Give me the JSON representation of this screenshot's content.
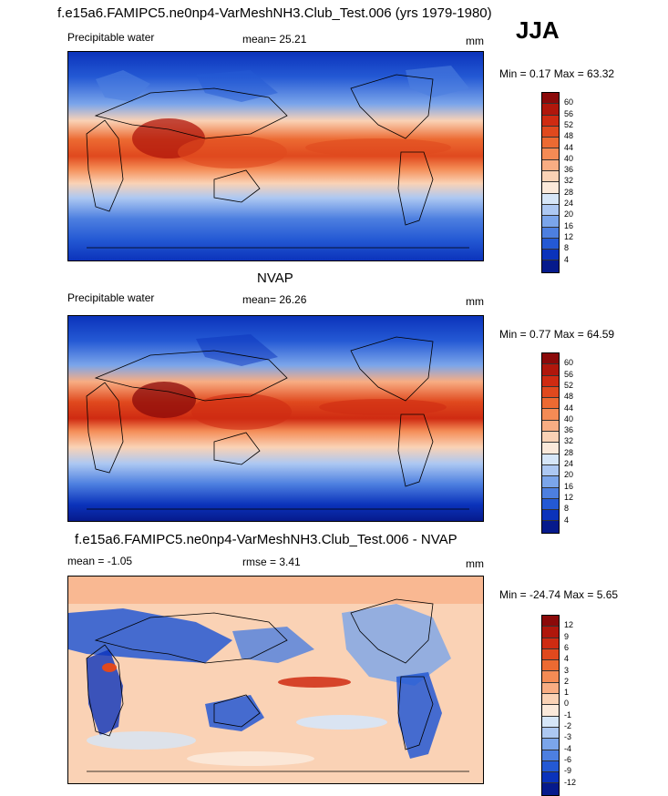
{
  "season": "JJA",
  "panels": [
    {
      "title": "f.e15a6.FAMIPC5.ne0np4-VarMeshNH3.Club_Test.006 (yrs 1979-1980)",
      "left_label": "Precipitable water",
      "center_label": "mean=  25.21",
      "units": "mm",
      "minmax": "Min =  0.17 Max =  63.32",
      "levels": [
        "60",
        "56",
        "52",
        "48",
        "44",
        "40",
        "36",
        "32",
        "28",
        "24",
        "20",
        "16",
        "12",
        "8",
        "4"
      ],
      "colors": [
        "#8b0a0a",
        "#b0170c",
        "#cf2b12",
        "#e0491e",
        "#ec6a32",
        "#f48b55",
        "#f8ad83",
        "#fad2b5",
        "#fbe9da",
        "#d6e6f8",
        "#adc8f2",
        "#7ba5ea",
        "#4d7fe0",
        "#2459d4",
        "#0b33bb",
        "#061a8c"
      ]
    },
    {
      "title": "NVAP",
      "left_label": "Precipitable water",
      "center_label": "mean=  26.26",
      "units": "mm",
      "minmax": "Min =  0.77 Max =  64.59",
      "levels": [
        "60",
        "56",
        "52",
        "48",
        "44",
        "40",
        "36",
        "32",
        "28",
        "24",
        "20",
        "16",
        "12",
        "8",
        "4"
      ],
      "colors": [
        "#8b0a0a",
        "#b0170c",
        "#cf2b12",
        "#e0491e",
        "#ec6a32",
        "#f48b55",
        "#f8ad83",
        "#fad2b5",
        "#fbe9da",
        "#d6e6f8",
        "#adc8f2",
        "#7ba5ea",
        "#4d7fe0",
        "#2459d4",
        "#0b33bb",
        "#061a8c"
      ]
    },
    {
      "title": "f.e15a6.FAMIPC5.ne0np4-VarMeshNH3.Club_Test.006 - NVAP",
      "left_label": "mean =  -1.05",
      "center_label": "rmse =   3.41",
      "units": "mm",
      "minmax": "Min = -24.74 Max =   5.65",
      "levels": [
        "12",
        "9",
        "6",
        "4",
        "3",
        "2",
        "1",
        "0",
        "-1",
        "-2",
        "-3",
        "-4",
        "-6",
        "-9",
        "-12"
      ],
      "colors": [
        "#8b0a0a",
        "#b0170c",
        "#cf2b12",
        "#e0491e",
        "#ec6a32",
        "#f48b55",
        "#f8ad83",
        "#fad2b5",
        "#fbe9da",
        "#d6e6f8",
        "#adc8f2",
        "#7ba5ea",
        "#4d7fe0",
        "#2459d4",
        "#0b33bb",
        "#061a8c"
      ]
    }
  ]
}
